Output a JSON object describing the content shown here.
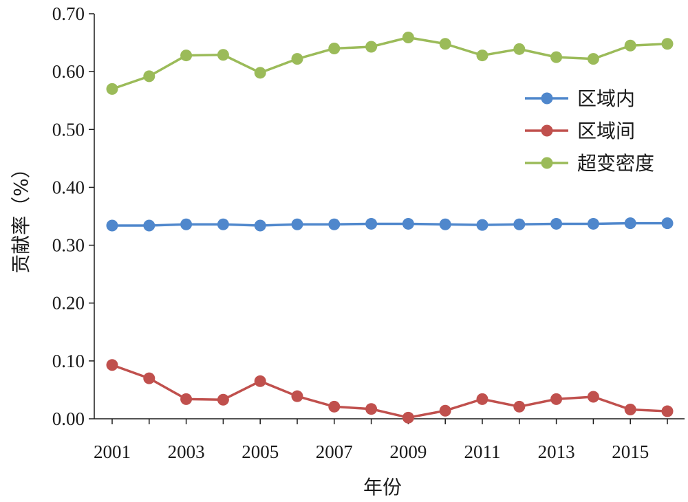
{
  "chart_data": {
    "type": "line",
    "title": "",
    "xlabel": "年份",
    "ylabel": "贡献率（%）",
    "x": [
      2001,
      2002,
      2003,
      2004,
      2005,
      2006,
      2007,
      2008,
      2009,
      2010,
      2011,
      2012,
      2013,
      2014,
      2015,
      2016
    ],
    "x_tick_labels": [
      "2001",
      "2003",
      "2005",
      "2007",
      "2009",
      "2011",
      "2013",
      "2015"
    ],
    "y_tick_labels": [
      "0.00",
      "0.10",
      "0.20",
      "0.30",
      "0.40",
      "0.50",
      "0.60",
      "0.70"
    ],
    "ylim": [
      0,
      0.7
    ],
    "grid": false,
    "legend_position": "right",
    "series": [
      {
        "name": "区域内",
        "color": "#4f87cc",
        "values": [
          0.334,
          0.334,
          0.336,
          0.336,
          0.334,
          0.336,
          0.336,
          0.337,
          0.337,
          0.336,
          0.335,
          0.336,
          0.337,
          0.337,
          0.338,
          0.338
        ]
      },
      {
        "name": "区域间",
        "color": "#c0504d",
        "values": [
          0.093,
          0.07,
          0.034,
          0.033,
          0.065,
          0.039,
          0.021,
          0.017,
          0.002,
          0.014,
          0.034,
          0.021,
          0.034,
          0.038,
          0.016,
          0.013
        ]
      },
      {
        "name": "超变密度",
        "color": "#9bbb59",
        "values": [
          0.57,
          0.592,
          0.628,
          0.629,
          0.598,
          0.622,
          0.64,
          0.643,
          0.659,
          0.648,
          0.628,
          0.639,
          0.625,
          0.622,
          0.645,
          0.648
        ]
      }
    ]
  }
}
